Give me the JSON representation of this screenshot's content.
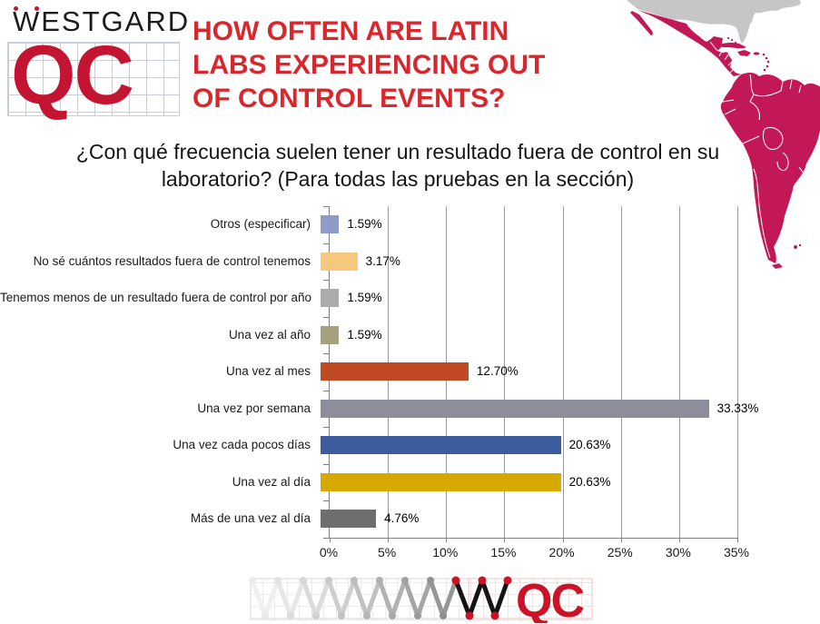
{
  "header": {
    "brand_word": "WESTGARD",
    "brand_qc": "QC",
    "title_lines": [
      "HOW OFTEN ARE LATIN",
      "LABS EXPERIENCING OUT",
      "OF CONTROL EVENTS?"
    ]
  },
  "subtitle": "¿Con qué frecuencia suelen tener un resultado fuera de control en su laboratorio? (Para todas las pruebas en la sección)",
  "chart_data": {
    "type": "bar",
    "orientation": "horizontal",
    "categories": [
      "Otros (especificar)",
      "No sé cuántos resultados fuera de control tenemos",
      "Tenemos menos de un resultado fuera de control por año",
      "Una vez al año",
      "Una vez al mes",
      "Una vez por semana",
      "Una vez cada pocos días",
      "Una vez al día",
      "Más de una vez al día"
    ],
    "values": [
      1.59,
      3.17,
      1.59,
      1.59,
      12.7,
      33.33,
      20.63,
      20.63,
      4.76
    ],
    "value_labels": [
      "1.59%",
      "3.17%",
      "1.59%",
      "1.59%",
      "12.70%",
      "33.33%",
      "20.63%",
      "20.63%",
      "4.76%"
    ],
    "bar_colors": [
      "#8E9BC8",
      "#F6C87D",
      "#ACACAC",
      "#A5A17D",
      "#C04A21",
      "#8D8D9B",
      "#3D5C9D",
      "#D7A800",
      "#6E6E6E"
    ],
    "x_ticks": [
      "0%",
      "5%",
      "10%",
      "15%",
      "20%",
      "25%",
      "30%",
      "35%"
    ],
    "xlim": [
      0,
      35
    ],
    "grid": true,
    "legend": "none",
    "title": "",
    "xlabel": "",
    "ylabel": ""
  },
  "footer": {
    "logo_qc": "QC"
  },
  "colors": {
    "title_red": "#D9272E",
    "logo_red": "#C31432",
    "map_fill": "#C21857",
    "map_north_fill": "#C6C6C6",
    "grid_line": "#999999",
    "axis_line": "#808080"
  }
}
